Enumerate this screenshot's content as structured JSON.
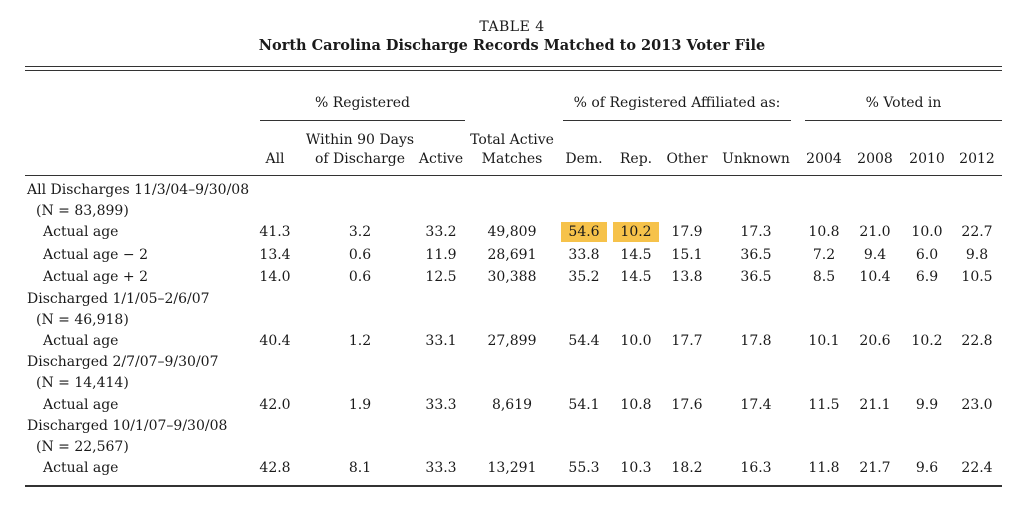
{
  "table": {
    "number": "TABLE 4",
    "title": "North Carolina Discharge Records Matched to 2013 Voter File"
  },
  "groups": {
    "registered": "% Registered",
    "affiliated": "% of Registered Affiliated as:",
    "voted": "% Voted in"
  },
  "columns": {
    "all": "All",
    "within90_line1": "Within 90 Days",
    "within90_line2": "of Discharge",
    "active": "Active",
    "total_line1": "Total Active",
    "total_line2": "Matches",
    "dem": "Dem.",
    "rep": "Rep.",
    "other": "Other",
    "unknown": "Unknown",
    "y2004": "2004",
    "y2008": "2008",
    "y2010": "2010",
    "y2012": "2012"
  },
  "section_labels": {
    "s1_line1": "All Discharges 11/3/04–9/30/08",
    "s1_line2": "(N = 83,899)",
    "s2_line1": "Discharged 1/1/05–2/6/07",
    "s2_line2": "(N = 46,918)",
    "s3_line1": "Discharged 2/7/07–9/30/07",
    "s3_line2": "(N = 14,414)",
    "s4_line1": "Discharged 10/1/07–9/30/08",
    "s4_line2": "(N = 22,567)"
  },
  "rows": [
    {
      "label": "Actual age",
      "values": [
        "41.3",
        "3.2",
        "33.2",
        "49,809",
        "54.6",
        "10.2",
        "17.9",
        "17.3",
        "10.8",
        "21.0",
        "10.0",
        "22.7"
      ]
    },
    {
      "label": "Actual age − 2",
      "values": [
        "13.4",
        "0.6",
        "11.9",
        "28,691",
        "33.8",
        "14.5",
        "15.1",
        "36.5",
        "7.2",
        "9.4",
        "6.0",
        "9.8"
      ]
    },
    {
      "label": "Actual age + 2",
      "values": [
        "14.0",
        "0.6",
        "12.5",
        "30,388",
        "35.2",
        "14.5",
        "13.8",
        "36.5",
        "8.5",
        "10.4",
        "6.9",
        "10.5"
      ]
    },
    {
      "label": "Actual age",
      "values": [
        "40.4",
        "1.2",
        "33.1",
        "27,899",
        "54.4",
        "10.0",
        "17.7",
        "17.8",
        "10.1",
        "20.6",
        "10.2",
        "22.8"
      ]
    },
    {
      "label": "Actual age",
      "values": [
        "42.0",
        "1.9",
        "33.3",
        "8,619",
        "54.1",
        "10.8",
        "17.6",
        "17.4",
        "11.5",
        "21.1",
        "9.9",
        "23.0"
      ]
    },
    {
      "label": "Actual age",
      "values": [
        "42.8",
        "8.1",
        "33.3",
        "13,291",
        "55.3",
        "10.3",
        "18.2",
        "16.3",
        "11.8",
        "21.7",
        "9.6",
        "22.4"
      ]
    }
  ],
  "highlight_color": "#f6c24a"
}
